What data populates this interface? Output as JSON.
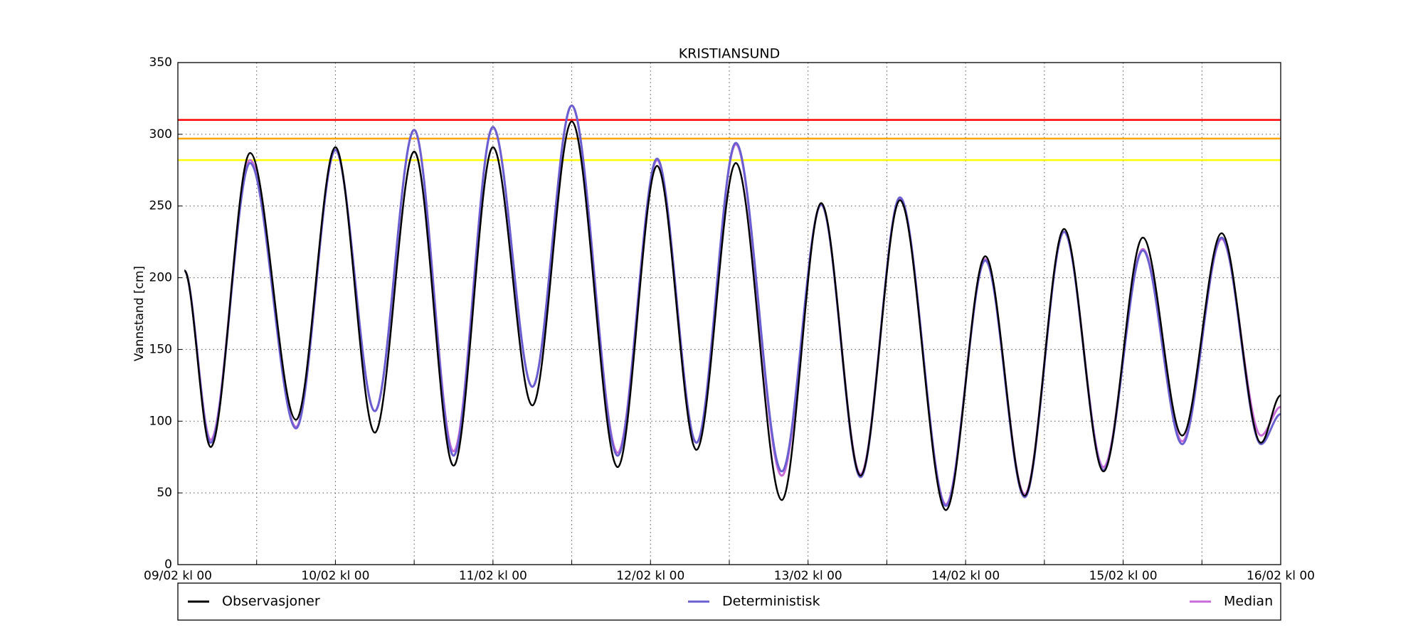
{
  "chart_data": {
    "type": "line",
    "title": "KRISTIANSUND",
    "y_label": "Vannstand [cm]",
    "xlim": [
      0,
      168
    ],
    "xticks": [
      {
        "value": 0,
        "label": "09/02 kl 00"
      },
      {
        "value": 24,
        "label": "10/02 kl 00"
      },
      {
        "value": 48,
        "label": "11/02 kl 00"
      },
      {
        "value": 72,
        "label": "12/02 kl 00"
      },
      {
        "value": 96,
        "label": "13/02 kl 00"
      },
      {
        "value": 120,
        "label": "14/02 kl 00"
      },
      {
        "value": 144,
        "label": "15/02 kl 00"
      },
      {
        "value": 168,
        "label": "16/02 kl 00"
      }
    ],
    "x_minor_ticks": [
      12,
      36,
      60,
      84,
      108,
      132,
      156
    ],
    "ylim": [
      0,
      350
    ],
    "yticks": [
      0,
      50,
      100,
      150,
      200,
      250,
      300,
      350
    ],
    "grid": true,
    "thresholds": [
      {
        "value": 310,
        "color": "#ff0000"
      },
      {
        "value": 297,
        "color": "#ffa500"
      },
      {
        "value": 282,
        "color": "#ffff00"
      }
    ],
    "x": [
      1,
      5,
      11,
      18,
      24,
      30,
      36,
      42,
      48,
      54,
      60,
      67,
      73,
      79,
      85,
      92,
      98,
      104,
      110,
      117,
      123,
      129,
      135,
      141,
      147,
      153,
      159,
      165,
      168
    ],
    "series": [
      {
        "name": "Observasjoner",
        "color": "#000000",
        "values": [
          205,
          82,
          287,
          101,
          291,
          92,
          288,
          69,
          291,
          111,
          309,
          68,
          278,
          80,
          280,
          45,
          252,
          62,
          254,
          38,
          215,
          48,
          234,
          65,
          228,
          90,
          231,
          85,
          118
        ]
      },
      {
        "name": "Deterministisk",
        "color": "#6a5fd0",
        "values": [
          205,
          85,
          280,
          95,
          289,
          107,
          303,
          76,
          305,
          124,
          320,
          76,
          283,
          85,
          294,
          65,
          251,
          61,
          256,
          41,
          212,
          47,
          232,
          66,
          219,
          84,
          228,
          84,
          105
        ]
      },
      {
        "name": "Median",
        "color": "#c86bd8",
        "values": [
          205,
          87,
          282,
          96,
          289,
          107,
          303,
          79,
          305,
          124,
          320,
          78,
          282,
          85,
          293,
          62,
          251,
          63,
          255,
          42,
          213,
          49,
          232,
          68,
          220,
          86,
          227,
          90,
          110
        ]
      }
    ],
    "legend": "below"
  }
}
